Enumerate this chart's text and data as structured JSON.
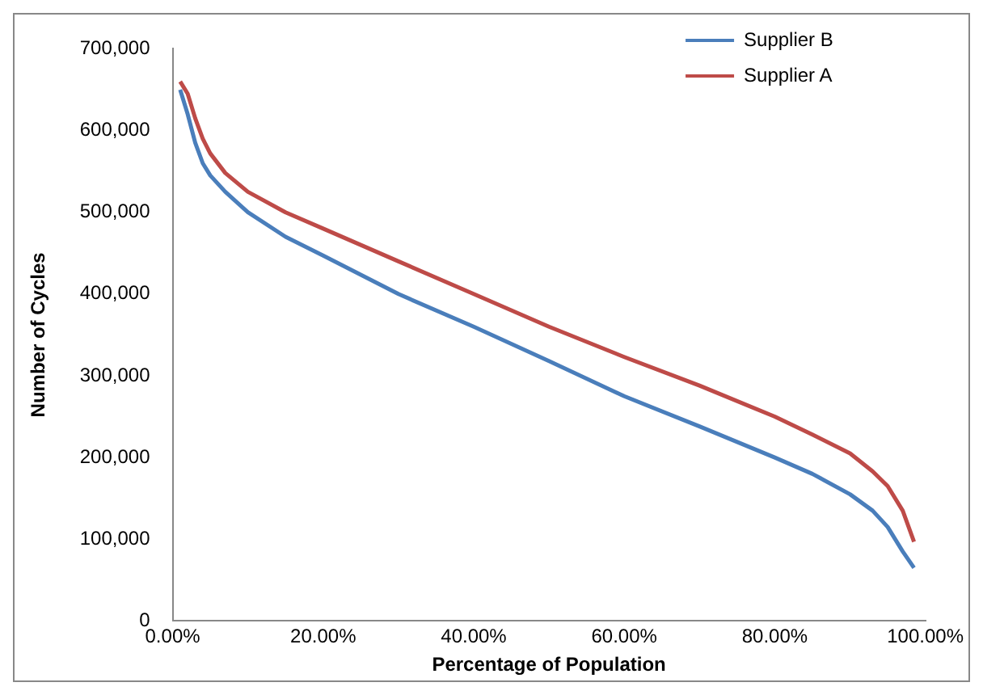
{
  "chart_data": {
    "type": "line",
    "xlabel": "Percentage of Population",
    "ylabel": "Number of Cycles",
    "x": [
      1,
      2,
      3,
      4,
      5,
      7,
      10,
      15,
      20,
      30,
      40,
      50,
      60,
      70,
      80,
      85,
      90,
      93,
      95,
      97,
      98.5
    ],
    "series": [
      {
        "name": "Supplier B",
        "color": "#4a7ebb",
        "values": [
          650000,
          620000,
          585000,
          560000,
          545000,
          525000,
          500000,
          470000,
          447000,
          400000,
          360000,
          318000,
          275000,
          238000,
          200000,
          180000,
          155000,
          135000,
          115000,
          85000,
          65000
        ]
      },
      {
        "name": "Supplier A",
        "color": "#be4b48",
        "values": [
          660000,
          645000,
          615000,
          590000,
          572000,
          548000,
          525000,
          500000,
          480000,
          440000,
          400000,
          360000,
          323000,
          288000,
          250000,
          228000,
          205000,
          183000,
          165000,
          135000,
          97000
        ]
      }
    ],
    "xlim": [
      0,
      100
    ],
    "xticks": [
      {
        "value": 0,
        "label": "0.00%"
      },
      {
        "value": 20,
        "label": "20.00%"
      },
      {
        "value": 40,
        "label": "40.00%"
      },
      {
        "value": 60,
        "label": "60.00%"
      },
      {
        "value": 80,
        "label": "80.00%"
      },
      {
        "value": 100,
        "label": "100.00%"
      }
    ],
    "ylim": [
      0,
      700000
    ],
    "yticks": [
      {
        "value": 0,
        "label": "0"
      },
      {
        "value": 100000,
        "label": "100,000"
      },
      {
        "value": 200000,
        "label": "200,000"
      },
      {
        "value": 300000,
        "label": "300,000"
      },
      {
        "value": 400000,
        "label": "400,000"
      },
      {
        "value": 500000,
        "label": "500,000"
      },
      {
        "value": 600000,
        "label": "600,000"
      },
      {
        "value": 700000,
        "label": "700,000"
      }
    ],
    "grid": false,
    "legend": "top right",
    "marker": "none",
    "line_style": "solid"
  }
}
